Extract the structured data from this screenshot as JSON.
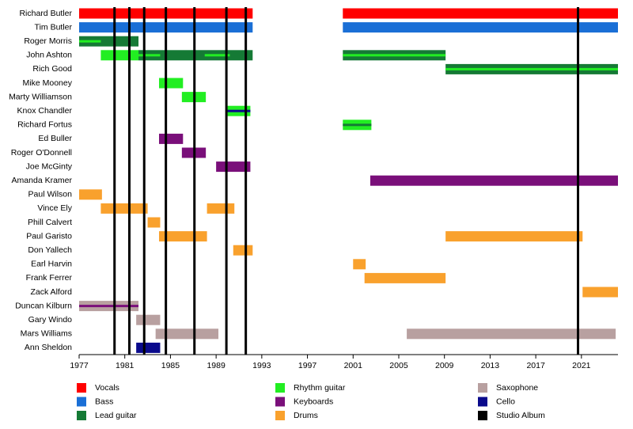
{
  "chart_data": {
    "type": "timeline",
    "categories": [
      "Richard Butler",
      "Tim Butler",
      "Roger Morris",
      "John Ashton",
      "Rich Good",
      "Mike Mooney",
      "Marty Williamson",
      "Knox Chandler",
      "Richard Fortus",
      "Ed Buller",
      "Roger O'Donnell",
      "Joe McGinty",
      "Amanda Kramer",
      "Paul Wilson",
      "Vince Ely",
      "Phill Calvert",
      "Paul Garisto",
      "Don Yallech",
      "Earl Harvin",
      "Frank Ferrer",
      "Zack Alford",
      "Duncan Kilburn",
      "Gary Windo",
      "Mars Williams",
      "Ann Sheldon"
    ],
    "xlim": [
      1977,
      2024.2
    ],
    "xticks": [
      1977,
      1981,
      1985,
      1989,
      1993,
      1997,
      2001,
      2005,
      2009,
      2013,
      2017,
      2021
    ],
    "series": [
      {
        "name": "Vocals",
        "color": "#ff0000",
        "periods": [
          {
            "member": "Richard Butler",
            "start": 1977,
            "end": 1992.2
          },
          {
            "member": "Richard Butler",
            "start": 2000.1,
            "end": 2024.2
          }
        ]
      },
      {
        "name": "Bass",
        "color": "#1a6fd6",
        "periods": [
          {
            "member": "Tim Butler",
            "start": 1977,
            "end": 1992.2
          },
          {
            "member": "Tim Butler",
            "start": 2000.1,
            "end": 2024.2
          }
        ]
      },
      {
        "name": "Lead guitar",
        "color": "#157a35",
        "periods": [
          {
            "member": "Roger Morris",
            "start": 1977,
            "end": 1982.2
          },
          {
            "member": "John Ashton",
            "start": 1982.2,
            "end": 1992.2
          },
          {
            "member": "John Ashton",
            "start": 2000.1,
            "end": 2009.1
          },
          {
            "member": "Rich Good",
            "start": 2009.1,
            "end": 2024.2
          },
          {
            "member": "Richard Fortus",
            "start": 2000.1,
            "end": 2002.6,
            "thin": true
          }
        ]
      },
      {
        "name": "Rhythm guitar",
        "color": "#22ee22",
        "periods": [
          {
            "member": "John Ashton",
            "start": 1978.9,
            "end": 1982.2
          },
          {
            "member": "Mike Mooney",
            "start": 1984,
            "end": 1986.1
          },
          {
            "member": "Marty Williamson",
            "start": 1986,
            "end": 1988.1
          },
          {
            "member": "Knox Chandler",
            "start": 1990,
            "end": 1992
          },
          {
            "member": "Richard Fortus",
            "start": 2000.1,
            "end": 2002.6
          },
          {
            "member": "Roger Morris",
            "start": 1977,
            "end": 1978.9,
            "thin": true
          },
          {
            "member": "John Ashton",
            "start": 1982.2,
            "end": 1984.1,
            "thin": true
          },
          {
            "member": "John Ashton",
            "start": 1988,
            "end": 1990.2,
            "thin": true
          },
          {
            "member": "John Ashton",
            "start": 2000.1,
            "end": 2009.1,
            "thin": true
          },
          {
            "member": "Rich Good",
            "start": 2009.1,
            "end": 2024.2,
            "thin": true
          }
        ]
      },
      {
        "name": "Keyboards",
        "color": "#7a0f7a",
        "periods": [
          {
            "member": "Ed Buller",
            "start": 1984,
            "end": 1986.1
          },
          {
            "member": "Roger O'Donnell",
            "start": 1986,
            "end": 1988.1
          },
          {
            "member": "Joe McGinty",
            "start": 1989,
            "end": 1992
          },
          {
            "member": "Amanda Kramer",
            "start": 2002.5,
            "end": 2024.2
          },
          {
            "member": "Duncan Kilburn",
            "start": 1977,
            "end": 1982.2,
            "thin": true
          }
        ]
      },
      {
        "name": "Drums",
        "color": "#f9a12d",
        "periods": [
          {
            "member": "Paul Wilson",
            "start": 1977,
            "end": 1979
          },
          {
            "member": "Vince Ely",
            "start": 1978.9,
            "end": 1983
          },
          {
            "member": "Vince Ely",
            "start": 1988.2,
            "end": 1990.6
          },
          {
            "member": "Phill Calvert",
            "start": 1983,
            "end": 1984.1
          },
          {
            "member": "Paul Garisto",
            "start": 1984,
            "end": 1988.2
          },
          {
            "member": "Paul Garisto",
            "start": 2009.1,
            "end": 2021.1
          },
          {
            "member": "Don Yallech",
            "start": 1990.5,
            "end": 1992.2
          },
          {
            "member": "Earl Harvin",
            "start": 2001,
            "end": 2002.1
          },
          {
            "member": "Frank Ferrer",
            "start": 2002,
            "end": 2009.1
          },
          {
            "member": "Zack Alford",
            "start": 2021.1,
            "end": 2024.2
          }
        ]
      },
      {
        "name": "Saxophone",
        "color": "#b8a0a0",
        "periods": [
          {
            "member": "Duncan Kilburn",
            "start": 1977,
            "end": 1982.2
          },
          {
            "member": "Gary Windo",
            "start": 1982,
            "end": 1984.1
          },
          {
            "member": "Mars Williams",
            "start": 1983.7,
            "end": 1989.2
          },
          {
            "member": "Mars Williams",
            "start": 2005.7,
            "end": 2024
          }
        ]
      },
      {
        "name": "Cello",
        "color": "#0a0a8c",
        "periods": [
          {
            "member": "Ann Sheldon",
            "start": 1982,
            "end": 1984.1
          },
          {
            "member": "Knox Chandler",
            "start": 1990,
            "end": 1992,
            "thin": true
          }
        ]
      },
      {
        "name": "Studio Album",
        "color": "#000000",
        "x": [
          1980.1,
          1981.4,
          1982.7,
          1984.6,
          1987.1,
          1989.9,
          1991.6,
          2020.7
        ]
      }
    ]
  }
}
